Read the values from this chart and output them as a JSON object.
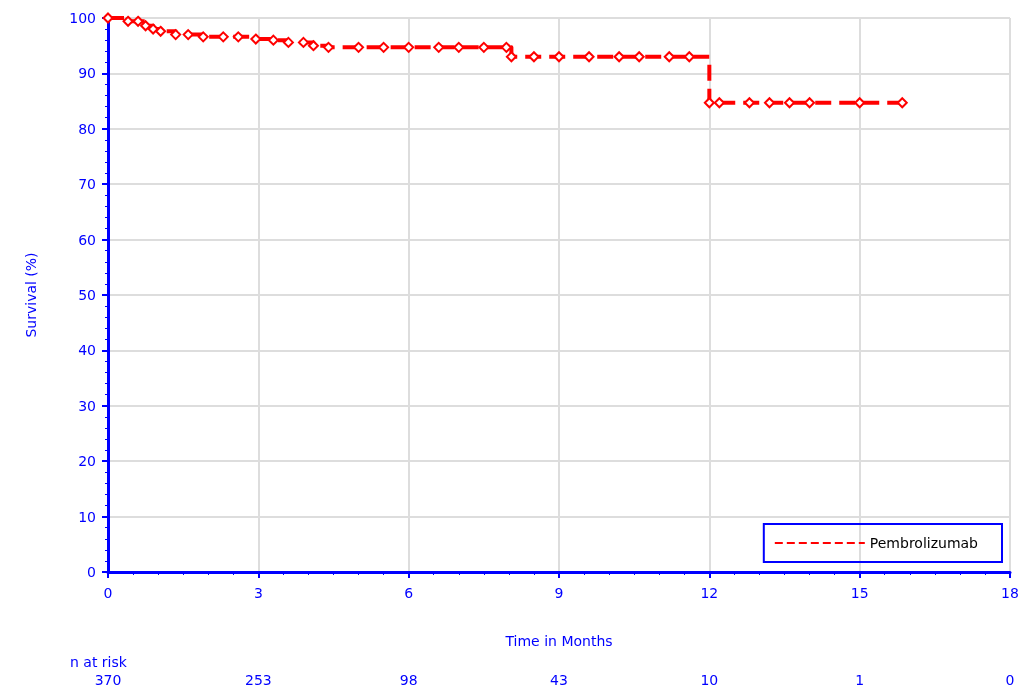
{
  "chart_data": {
    "type": "step",
    "xlabel": "Time in Months",
    "ylabel": "Survival (%)",
    "xlim": [
      0,
      18
    ],
    "xticks": [
      0,
      3,
      6,
      9,
      12,
      15,
      18
    ],
    "ylim": [
      0,
      100
    ],
    "yticks": [
      0,
      10,
      20,
      30,
      40,
      50,
      60,
      70,
      80,
      90,
      100
    ],
    "grid": true,
    "legend": "bottom right",
    "marker": "diamond",
    "line_style": "dashed",
    "series": [
      {
        "name": "Pembrolizumab",
        "color": "#ff0000",
        "x": [
          0,
          0.4,
          0.6,
          0.75,
          0.9,
          1.05,
          1.35,
          1.6,
          1.9,
          2.3,
          2.6,
          2.95,
          3.3,
          3.6,
          3.9,
          4.1,
          4.4,
          5.0,
          5.5,
          6.0,
          6.6,
          7.0,
          7.5,
          7.95,
          8.05,
          8.5,
          9.0,
          9.6,
          10.2,
          10.6,
          11.2,
          11.6,
          12.0,
          12.2,
          12.8,
          13.2,
          13.6,
          14.0,
          15.0,
          15.85
        ],
        "values": [
          100,
          99.4,
          99.4,
          98.6,
          98.0,
          97.6,
          97.0,
          97.0,
          96.6,
          96.6,
          96.6,
          96.2,
          96.0,
          95.6,
          95.6,
          95.0,
          94.7,
          94.7,
          94.7,
          94.7,
          94.7,
          94.7,
          94.7,
          94.7,
          93.0,
          93.0,
          93.0,
          93.0,
          93.0,
          93.0,
          93.0,
          93.0,
          84.7,
          84.7,
          84.7,
          84.7,
          84.7,
          84.7,
          84.7,
          84.7
        ]
      }
    ],
    "annotations": [
      "n at risk",
      "370",
      "253",
      "98",
      "43",
      "10",
      "1",
      "0"
    ]
  }
}
